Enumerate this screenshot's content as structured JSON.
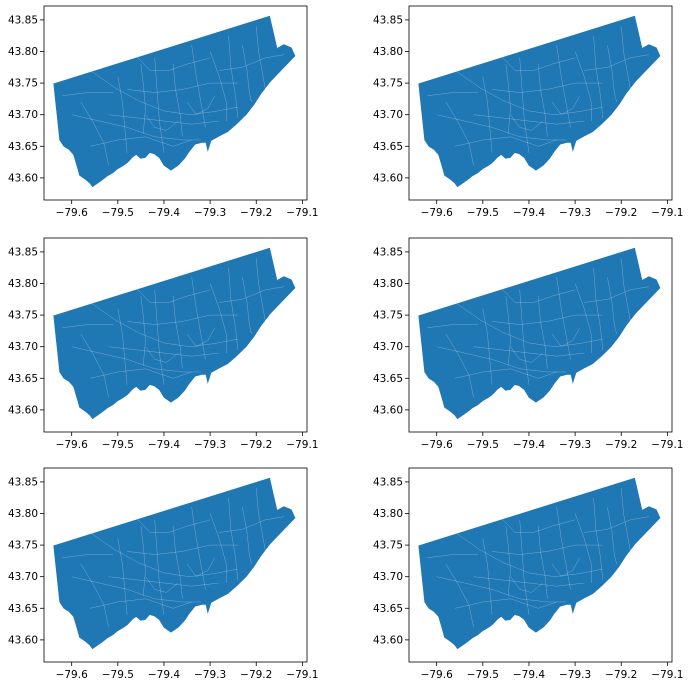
{
  "figure": {
    "background": "#ffffff",
    "subplots_layout": {
      "rows": 3,
      "cols": 2
    }
  },
  "map_style": {
    "fill_color": "#1f77b4",
    "boundary_color": "#ffffff",
    "frame_color": "#000000"
  },
  "axes": {
    "x_ticks": [
      -79.6,
      -79.5,
      -79.4,
      -79.3,
      -79.2,
      -79.1
    ],
    "x_tick_labels": [
      "−79.6",
      "−79.5",
      "−79.4",
      "−79.3",
      "−79.2",
      "−79.1"
    ],
    "y_ticks": [
      43.6,
      43.65,
      43.7,
      43.75,
      43.8,
      43.85
    ],
    "y_tick_labels": [
      "43.60",
      "43.65",
      "43.70",
      "43.75",
      "43.80",
      "43.85"
    ],
    "xlim": [
      -79.66,
      -79.09
    ],
    "ylim": [
      43.565,
      43.872
    ]
  },
  "map_outline_lonlat": [
    [
      -79.639,
      43.749
    ],
    [
      -79.171,
      43.856
    ],
    [
      -79.155,
      43.805
    ],
    [
      -79.14,
      43.811
    ],
    [
      -79.124,
      43.806
    ],
    [
      -79.116,
      43.793
    ],
    [
      -79.145,
      43.771
    ],
    [
      -79.17,
      43.752
    ],
    [
      -79.19,
      43.733
    ],
    [
      -79.205,
      43.716
    ],
    [
      -79.222,
      43.7
    ],
    [
      -79.243,
      43.685
    ],
    [
      -79.262,
      43.673
    ],
    [
      -79.281,
      43.666
    ],
    [
      -79.298,
      43.659
    ],
    [
      -79.305,
      43.643
    ],
    [
      -79.309,
      43.656
    ],
    [
      -79.318,
      43.656
    ],
    [
      -79.333,
      43.653
    ],
    [
      -79.346,
      43.641
    ],
    [
      -79.355,
      43.631
    ],
    [
      -79.369,
      43.62
    ],
    [
      -79.385,
      43.612
    ],
    [
      -79.4,
      43.62
    ],
    [
      -79.41,
      43.632
    ],
    [
      -79.421,
      43.638
    ],
    [
      -79.431,
      43.64
    ],
    [
      -79.441,
      43.632
    ],
    [
      -79.451,
      43.631
    ],
    [
      -79.46,
      43.637
    ],
    [
      -79.468,
      43.633
    ],
    [
      -79.478,
      43.625
    ],
    [
      -79.487,
      43.62
    ],
    [
      -79.501,
      43.614
    ],
    [
      -79.511,
      43.608
    ],
    [
      -79.523,
      43.603
    ],
    [
      -79.535,
      43.596
    ],
    [
      -79.547,
      43.59
    ],
    [
      -79.555,
      43.586
    ],
    [
      -79.561,
      43.592
    ],
    [
      -79.571,
      43.598
    ],
    [
      -79.583,
      43.604
    ],
    [
      -79.589,
      43.62
    ],
    [
      -79.596,
      43.637
    ],
    [
      -79.606,
      43.645
    ],
    [
      -79.617,
      43.65
    ],
    [
      -79.626,
      43.66
    ]
  ],
  "map_boundaries_lonlat": [
    [
      [
        -79.56,
        43.77
      ],
      [
        -79.505,
        43.742
      ],
      [
        -79.455,
        43.722
      ],
      [
        -79.4,
        43.706
      ],
      [
        -79.345,
        43.7
      ],
      [
        -79.29,
        43.705
      ],
      [
        -79.24,
        43.712
      ]
    ],
    [
      [
        -79.6,
        43.7
      ],
      [
        -79.54,
        43.69
      ],
      [
        -79.48,
        43.68
      ],
      [
        -79.42,
        43.665
      ],
      [
        -79.36,
        43.66
      ],
      [
        -79.32,
        43.66
      ]
    ],
    [
      [
        -79.5,
        43.76
      ],
      [
        -79.49,
        43.72
      ],
      [
        -79.485,
        43.68
      ],
      [
        -79.48,
        43.64
      ]
    ],
    [
      [
        -79.42,
        43.79
      ],
      [
        -79.415,
        43.74
      ],
      [
        -79.41,
        43.69
      ],
      [
        -79.4,
        43.64
      ]
    ],
    [
      [
        -79.34,
        43.81
      ],
      [
        -79.33,
        43.76
      ],
      [
        -79.32,
        43.72
      ],
      [
        -79.31,
        43.68
      ]
    ],
    [
      [
        -79.26,
        43.825
      ],
      [
        -79.255,
        43.775
      ],
      [
        -79.245,
        43.73
      ],
      [
        -79.24,
        43.695
      ]
    ],
    [
      [
        -79.2,
        43.84
      ],
      [
        -79.195,
        43.8
      ],
      [
        -79.185,
        43.76
      ],
      [
        -79.18,
        43.74
      ]
    ],
    [
      [
        -79.58,
        43.72
      ],
      [
        -79.555,
        43.69
      ],
      [
        -79.53,
        43.655
      ],
      [
        -79.52,
        43.62
      ]
    ],
    [
      [
        -79.62,
        43.73
      ],
      [
        -79.565,
        43.735
      ],
      [
        -79.51,
        43.735
      ]
    ],
    [
      [
        -79.45,
        43.78
      ],
      [
        -79.445,
        43.75
      ],
      [
        -79.44,
        43.71
      ],
      [
        -79.445,
        43.67
      ]
    ],
    [
      [
        -79.38,
        43.78
      ],
      [
        -79.375,
        43.74
      ],
      [
        -79.365,
        43.7
      ],
      [
        -79.36,
        43.665
      ]
    ],
    [
      [
        -79.28,
        43.77
      ],
      [
        -79.23,
        43.775
      ],
      [
        -79.18,
        43.79
      ],
      [
        -79.14,
        43.795
      ]
    ],
    [
      [
        -79.48,
        43.74
      ],
      [
        -79.42,
        43.735
      ],
      [
        -79.36,
        43.74
      ],
      [
        -79.3,
        43.75
      ],
      [
        -79.24,
        43.75
      ]
    ],
    [
      [
        -79.52,
        43.7
      ],
      [
        -79.46,
        43.695
      ],
      [
        -79.4,
        43.69
      ],
      [
        -79.34,
        43.685
      ],
      [
        -79.28,
        43.69
      ]
    ],
    [
      [
        -79.56,
        43.65
      ],
      [
        -79.5,
        43.66
      ],
      [
        -79.44,
        43.665
      ],
      [
        -79.38,
        43.65
      ],
      [
        -79.34,
        43.66
      ]
    ],
    [
      [
        -79.47,
        43.8
      ],
      [
        -79.43,
        43.77
      ],
      [
        -79.39,
        43.77
      ],
      [
        -79.35,
        43.78
      ],
      [
        -79.3,
        43.79
      ]
    ],
    [
      [
        -79.3,
        43.8
      ],
      [
        -79.28,
        43.76
      ],
      [
        -79.265,
        43.72
      ],
      [
        -79.265,
        43.69
      ]
    ],
    [
      [
        -79.23,
        43.81
      ],
      [
        -79.22,
        43.77
      ],
      [
        -79.215,
        43.735
      ],
      [
        -79.21,
        43.72
      ]
    ],
    [
      [
        -79.44,
        43.7
      ],
      [
        -79.42,
        43.68
      ],
      [
        -79.395,
        43.675
      ],
      [
        -79.37,
        43.69
      ]
    ],
    [
      [
        -79.35,
        43.72
      ],
      [
        -79.33,
        43.7
      ],
      [
        -79.305,
        43.71
      ],
      [
        -79.29,
        43.73
      ]
    ]
  ]
}
